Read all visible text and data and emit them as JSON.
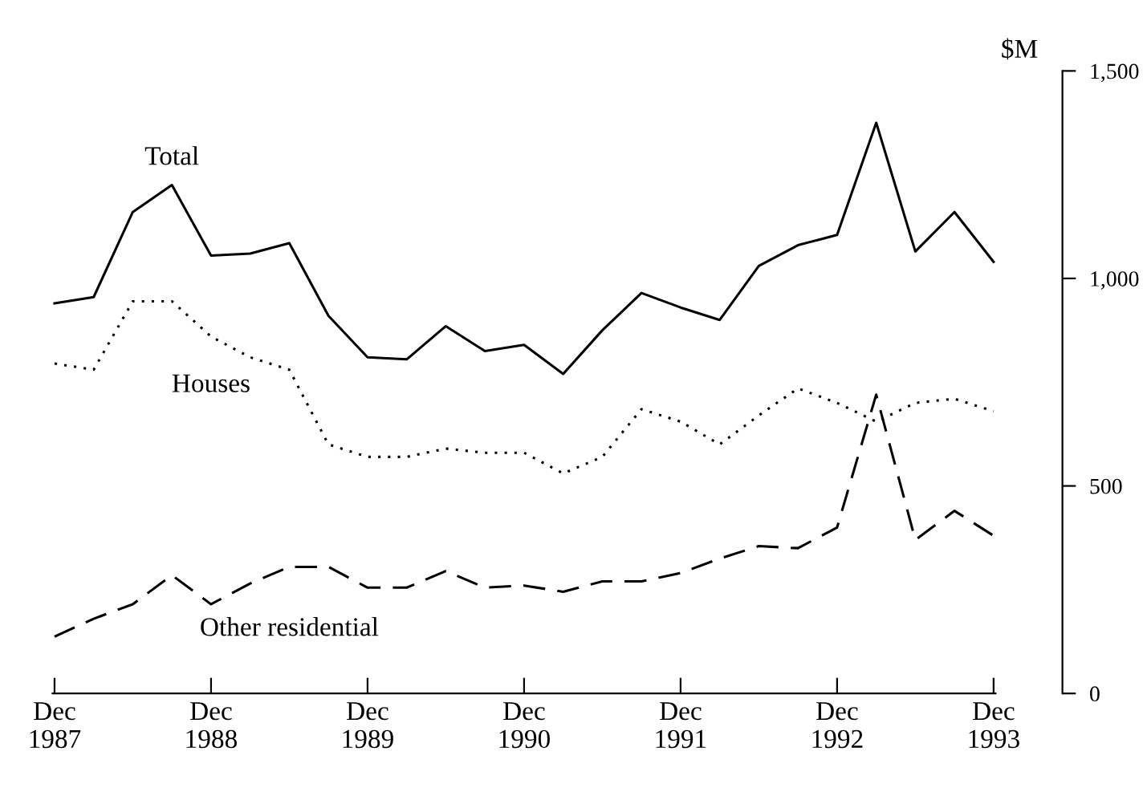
{
  "chart_data": {
    "type": "line",
    "ylabel": "$M",
    "categories": [
      "Dec\n1987",
      null,
      null,
      null,
      "Dec\n1988",
      null,
      null,
      null,
      "Dec\n1989",
      null,
      null,
      null,
      "Dec\n1990",
      null,
      null,
      null,
      "Dec\n1991",
      null,
      null,
      null,
      "Dec\n1992",
      null,
      null,
      null,
      "Dec\n1993"
    ],
    "series": [
      {
        "name": "Total",
        "color": "#000000",
        "line_style": "solid",
        "values": [
          940,
          955,
          1160,
          1225,
          1055,
          1060,
          1085,
          910,
          810,
          805,
          885,
          825,
          840,
          770,
          875,
          965,
          930,
          900,
          1030,
          1080,
          1105,
          1375,
          1065,
          1160,
          1040
        ]
      },
      {
        "name": "Houses",
        "color": "#000000",
        "line_style": "dotted",
        "values": [
          795,
          780,
          945,
          945,
          860,
          810,
          780,
          600,
          570,
          570,
          590,
          580,
          580,
          530,
          570,
          685,
          655,
          600,
          670,
          735,
          700,
          655,
          700,
          710,
          680
        ]
      },
      {
        "name": "Other residential",
        "color": "#000000",
        "line_style": "dashed",
        "values": [
          137,
          180,
          215,
          285,
          215,
          265,
          305,
          305,
          255,
          255,
          295,
          255,
          260,
          245,
          270,
          270,
          290,
          325,
          355,
          350,
          400,
          720,
          370,
          440,
          380
        ]
      }
    ],
    "ylim": [
      0,
      1500
    ],
    "yticks": [
      0,
      500,
      {
        "value": 1000,
        "label": "1,000"
      },
      {
        "value": 1500,
        "label": "1,500"
      }
    ],
    "grid": false,
    "legend": false,
    "marker": "none"
  }
}
